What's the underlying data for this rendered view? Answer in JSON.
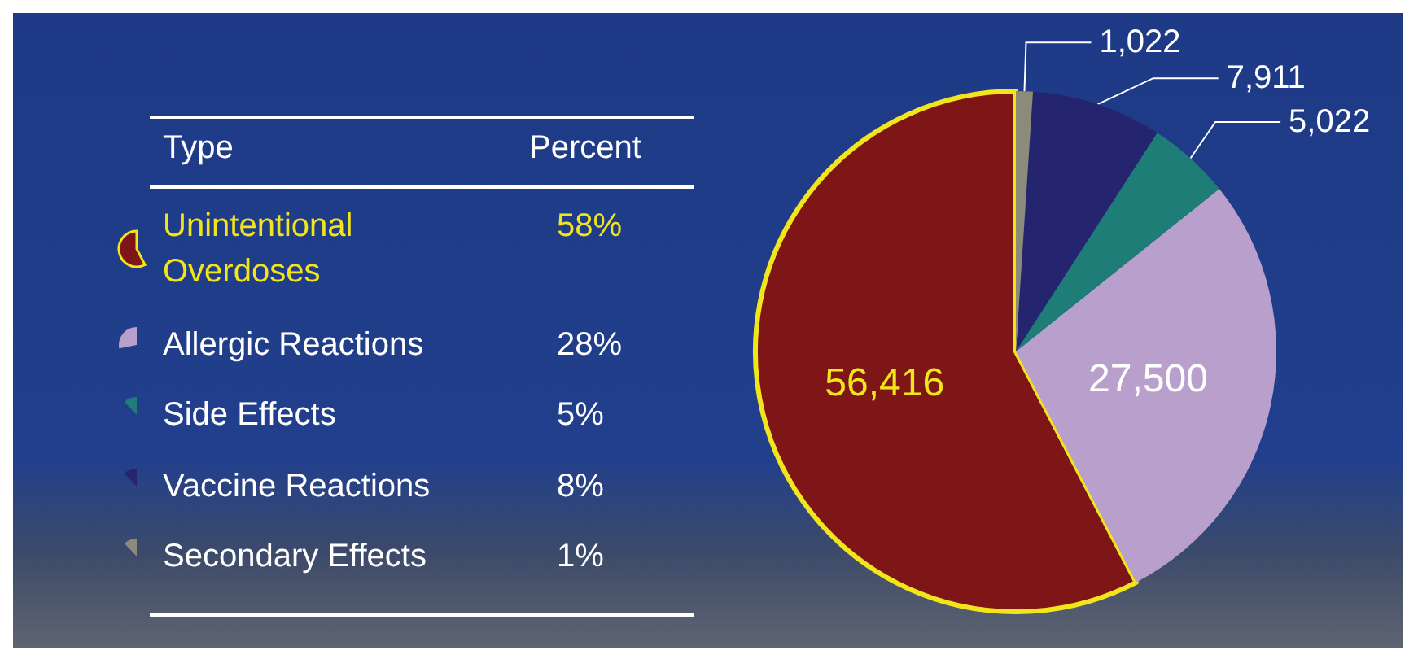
{
  "chart_data": {
    "type": "pie",
    "categories": [
      "Unintentional Overdoses",
      "Allergic Reactions",
      "Side Effects",
      "Vaccine Reactions",
      "Secondary Effects"
    ],
    "values": [
      56416,
      27500,
      5022,
      7911,
      1022
    ],
    "colors": [
      "#7e1517",
      "#b9a0cc",
      "#1f7d78",
      "#24256e",
      "#8c8a78"
    ],
    "value_labels": [
      "56,416",
      "27,500",
      "5,022",
      "7,911",
      "1,022"
    ],
    "legend": "left",
    "legend_title": "Type",
    "annotations": [
      "Percent",
      "58%",
      "28%",
      "5%",
      "8%",
      "1%"
    ]
  }
}
